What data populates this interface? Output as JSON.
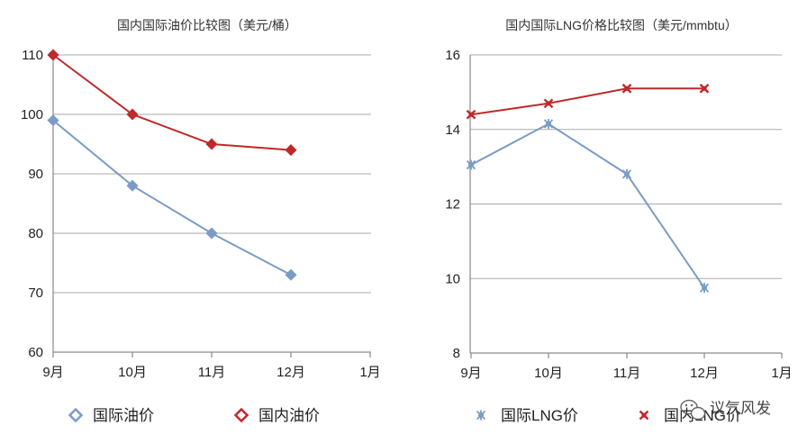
{
  "chart_data": [
    {
      "type": "line",
      "title": "国内国际油价比较图（美元/桶）",
      "categories": [
        "9月",
        "10月",
        "11月",
        "12月",
        "1月"
      ],
      "ylim": [
        60,
        110
      ],
      "yticks": [
        "60",
        "70",
        "80",
        "90",
        "100",
        "110"
      ],
      "grid": true,
      "legend_position": "bottom",
      "series": [
        {
          "name": "国际油价",
          "marker": "diamond-open",
          "color": "#7A9CC4",
          "values": [
            99,
            88,
            80,
            73,
            null
          ]
        },
        {
          "name": "国内油价",
          "marker": "diamond-open",
          "color": "#C0282A",
          "values": [
            110,
            100,
            95,
            94,
            null
          ]
        }
      ]
    },
    {
      "type": "line",
      "title": "国内国际LNG价格比较图（美元/mmbtu）",
      "categories": [
        "9月",
        "10月",
        "11月",
        "12月",
        "1月"
      ],
      "ylim": [
        8,
        16
      ],
      "yticks": [
        "8",
        "10",
        "12",
        "14",
        "16"
      ],
      "grid": true,
      "legend_position": "bottom",
      "series": [
        {
          "name": "国际LNG价",
          "marker": "asterisk",
          "color": "#7A9CC4",
          "values": [
            13.05,
            14.15,
            12.8,
            9.75,
            null
          ]
        },
        {
          "name": "国内LNG价",
          "marker": "x",
          "color": "#C0282A",
          "values": [
            14.4,
            14.7,
            15.1,
            15.1,
            null
          ]
        }
      ]
    }
  ],
  "watermark": {
    "text": "议气风发",
    "icon": "wechat-icon"
  }
}
